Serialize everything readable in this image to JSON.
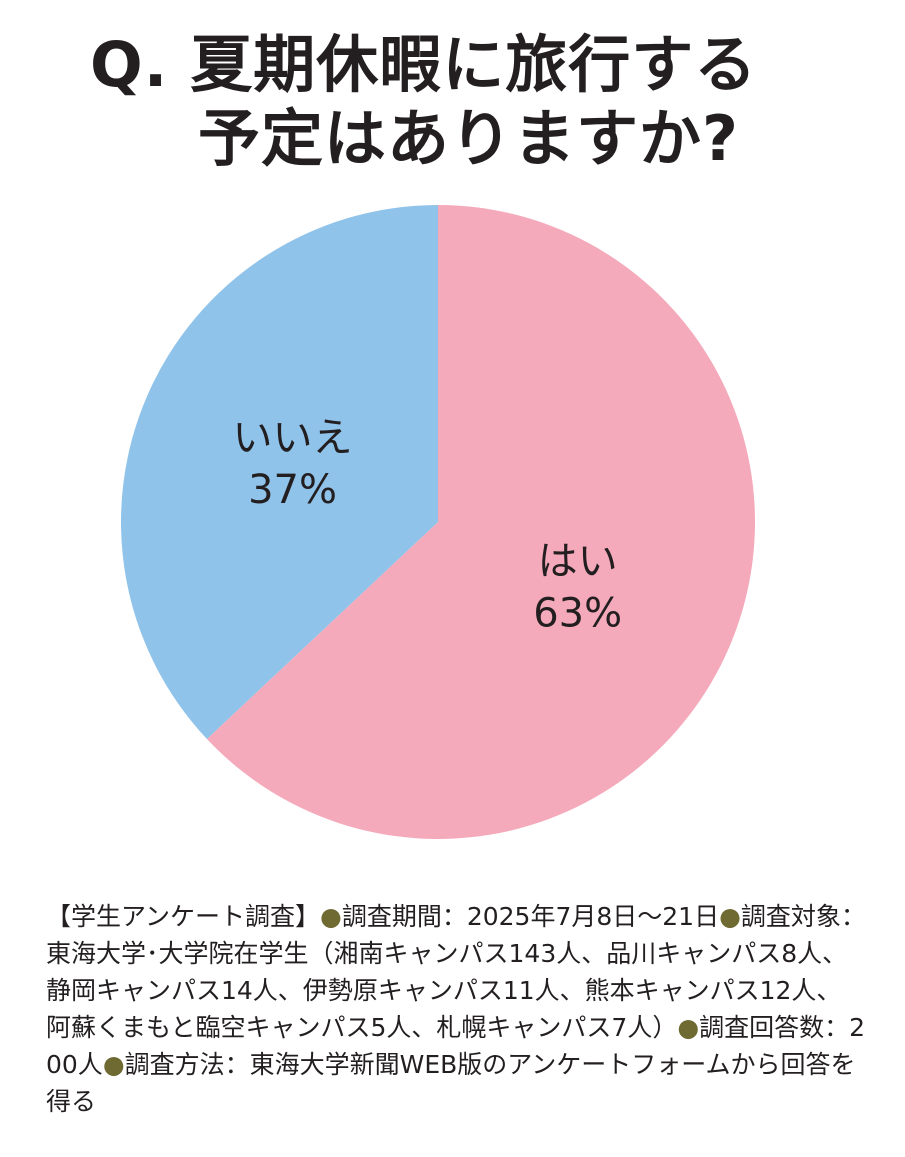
{
  "title": {
    "prefix": "Q.",
    "line1": "夏期休暇に旅行する",
    "line2": "予定はありますか?"
  },
  "chart_data": {
    "type": "pie",
    "title": "Q. 夏期休暇に旅行する予定はありますか?",
    "slices": [
      {
        "label": "はい",
        "value": 63,
        "value_text": "63%",
        "color": "#f5aabb"
      },
      {
        "label": "いいえ",
        "value": 37,
        "value_text": "37%",
        "color": "#90c3ea"
      }
    ],
    "start": "12 o'clock",
    "direction": "clockwise"
  },
  "footnote": {
    "segments": [
      {
        "text": "【学生アンケート調査】"
      },
      {
        "text": "●",
        "bullet": true
      },
      {
        "text": "調査期間：2025年7月8日～21日"
      },
      {
        "text": "●",
        "bullet": true
      },
      {
        "text": "調査対象：東海大学･大学院在学生（湘南キャンパス143人、品川キャンパス8人、静岡キャンパス14人、伊勢原キャンパス11人、熊本キャンパス12人、阿蘇くまもと臨空キャンパス5人、札幌キャンパス7人）"
      },
      {
        "text": "●",
        "bullet": true
      },
      {
        "text": "調査回答数：200人"
      },
      {
        "text": "●",
        "bullet": true
      },
      {
        "text": "調査方法：東海大学新聞WEB版のアンケートフォームから回答を得る"
      }
    ]
  }
}
